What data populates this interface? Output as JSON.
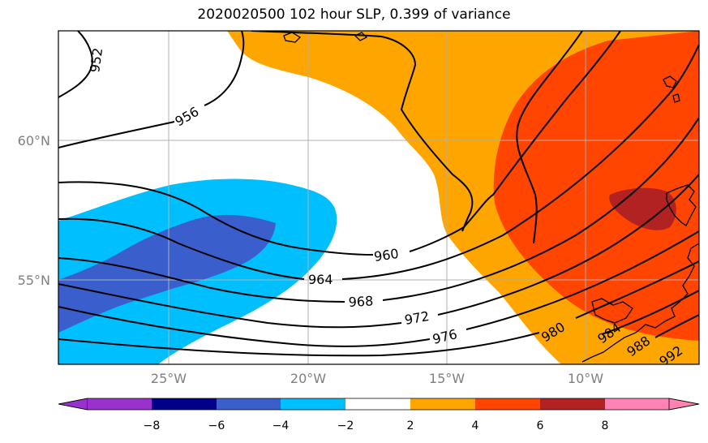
{
  "title": "2020020500 102 hour SLP, 0.399 of variance",
  "colors": {
    "purple": "#9932cc",
    "navy": "#00008b",
    "royal": "#3a5fcd",
    "sky": "#00bfff",
    "white": "#ffffff",
    "orange": "#ffa500",
    "orangered": "#ff4500",
    "firebrick": "#b22222",
    "pink": "#ff82b4"
  },
  "axes": {
    "lon_ticks": [
      "25°W",
      "20°W",
      "15°W",
      "10°W"
    ],
    "lat_ticks": [
      "60°N",
      "55°N"
    ]
  },
  "contour_labels": [
    "952",
    "956",
    "960",
    "964",
    "968",
    "972",
    "976",
    "980",
    "984",
    "988",
    "992"
  ],
  "colorbar": {
    "ticks": [
      "−8",
      "−6",
      "−4",
      "−2",
      "2",
      "4",
      "6",
      "8"
    ]
  }
}
